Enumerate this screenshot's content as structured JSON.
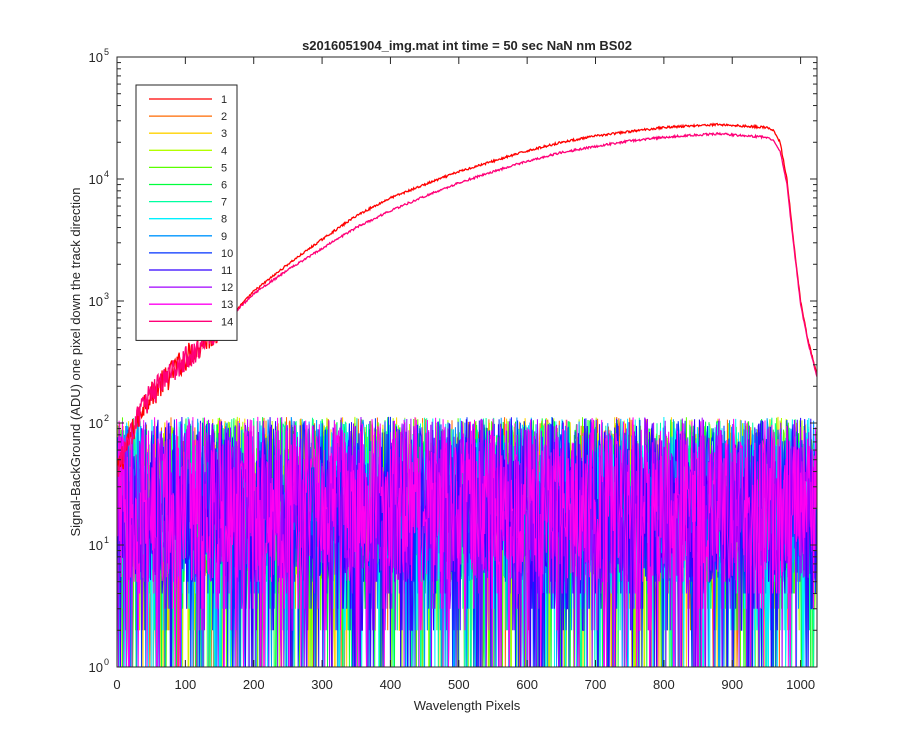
{
  "chart_data": {
    "type": "line",
    "title": "s2016051904_img.mat int time = 50 sec  NaN nm BS02",
    "xlabel": "Wavelength Pixels",
    "ylabel": "Signal-BackGround (ADU) one pixel down the track direction",
    "xlim": [
      0,
      1024
    ],
    "ylim": [
      1,
      100000
    ],
    "yscale": "log",
    "grid": false,
    "legend_position": "top-left",
    "x_ticks": [
      "0",
      "100",
      "200",
      "300",
      "400",
      "500",
      "600",
      "700",
      "800",
      "900",
      "1000"
    ],
    "y_ticks": [
      {
        "base": "10",
        "exp": "0"
      },
      {
        "base": "10",
        "exp": "1"
      },
      {
        "base": "10",
        "exp": "2"
      },
      {
        "base": "10",
        "exp": "3"
      },
      {
        "base": "10",
        "exp": "4"
      },
      {
        "base": "10",
        "exp": "5"
      }
    ],
    "series": [
      {
        "name": "1",
        "color": "#ff0000",
        "profile": {
          "x": [
            0,
            20,
            40,
            60,
            100,
            150,
            200,
            250,
            300,
            350,
            400,
            450,
            500,
            550,
            600,
            650,
            700,
            750,
            800,
            850,
            880,
            900,
            925,
            950,
            960,
            970,
            980,
            990,
            1000,
            1010,
            1020,
            1024
          ],
          "y": [
            40,
            80,
            150,
            200,
            350,
            600,
            1200,
            2000,
            3200,
            5000,
            7000,
            9000,
            11500,
            14000,
            17000,
            20000,
            22500,
            24500,
            26500,
            27500,
            28000,
            27500,
            27000,
            26500,
            25000,
            20000,
            10000,
            3000,
            1000,
            500,
            300,
            250
          ]
        }
      },
      {
        "name": "2",
        "color": "#ff6a00",
        "noise": {
          "low": 1,
          "high": 100
        }
      },
      {
        "name": "3",
        "color": "#ffd200",
        "noise": {
          "low": 1,
          "high": 100
        }
      },
      {
        "name": "4",
        "color": "#b4ff00",
        "noise": {
          "low": 1,
          "high": 100
        }
      },
      {
        "name": "5",
        "color": "#5aff00",
        "noise": {
          "low": 1,
          "high": 100
        }
      },
      {
        "name": "6",
        "color": "#00ff3c",
        "noise": {
          "low": 1,
          "high": 100
        }
      },
      {
        "name": "7",
        "color": "#00ffa0",
        "noise": {
          "low": 1,
          "high": 100
        }
      },
      {
        "name": "8",
        "color": "#00f0ff",
        "noise": {
          "low": 1,
          "high": 100
        }
      },
      {
        "name": "9",
        "color": "#0096ff",
        "noise": {
          "low": 1,
          "high": 100
        }
      },
      {
        "name": "10",
        "color": "#0032ff",
        "noise": {
          "low": 1,
          "high": 100
        }
      },
      {
        "name": "11",
        "color": "#3200ff",
        "noise": {
          "low": 1,
          "high": 100
        }
      },
      {
        "name": "12",
        "color": "#a000ff",
        "noise": {
          "low": 1,
          "high": 100
        }
      },
      {
        "name": "13",
        "color": "#ff00f0",
        "noise": {
          "low": 1,
          "high": 100
        }
      },
      {
        "name": "14",
        "color": "#ff0078",
        "profile": {
          "x": [
            0,
            20,
            40,
            60,
            100,
            150,
            200,
            250,
            300,
            350,
            400,
            450,
            500,
            550,
            600,
            650,
            700,
            750,
            800,
            850,
            880,
            900,
            925,
            950,
            960,
            970,
            980,
            990,
            1000,
            1010,
            1020,
            1024
          ],
          "y": [
            40,
            80,
            150,
            200,
            350,
            600,
            1150,
            1800,
            2700,
            4000,
            5500,
            7200,
            9300,
            11500,
            14000,
            16500,
            18500,
            20500,
            22000,
            23000,
            23500,
            23000,
            22500,
            22000,
            21000,
            17000,
            9000,
            2800,
            950,
            480,
            290,
            240
          ]
        }
      }
    ]
  }
}
